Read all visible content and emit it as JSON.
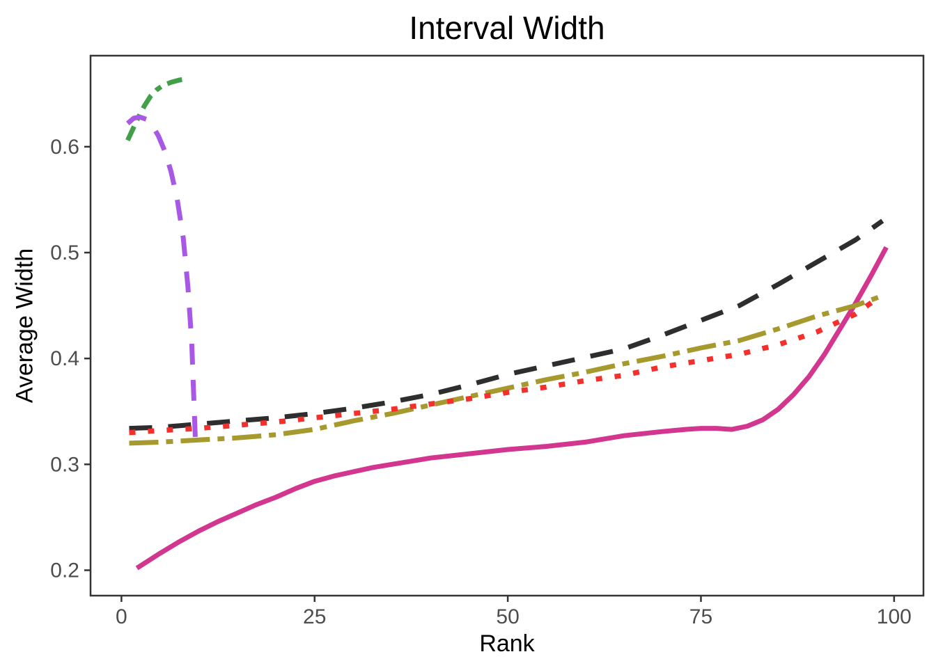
{
  "title": "Interval Width",
  "axes": {
    "x": {
      "label": "Rank",
      "tick_values": [
        0,
        25,
        50,
        75,
        100
      ],
      "tick_labels": [
        "0",
        "25",
        "50",
        "75",
        "100"
      ]
    },
    "y": {
      "label": "Average Width",
      "tick_values": [
        0.2,
        0.3,
        0.4,
        0.5,
        0.6
      ],
      "tick_labels": [
        "0.2",
        "0.3",
        "0.4",
        "0.5",
        "0.6"
      ]
    }
  },
  "style_colors": {
    "background": "#FFFFFF",
    "panel_border": "#333333",
    "tick_mark": "#333333",
    "tick_label": "#4D4D4D",
    "title_text": "#000000"
  },
  "chart_data": {
    "type": "line",
    "title": "Interval Width",
    "xlabel": "Rank",
    "ylabel": "Average Width",
    "xlim": [
      -4.0,
      103.8
    ],
    "ylim": [
      0.176,
      0.686
    ],
    "grid": false,
    "legend": "none",
    "series": [
      {
        "name": "magenta-solid",
        "color": "#D2368E",
        "linestyle": "solid",
        "x": [
          2,
          3.5,
          5,
          7.5,
          10,
          12.5,
          15,
          17.5,
          20,
          22.5,
          25,
          27.5,
          30,
          32.5,
          35,
          37.5,
          40,
          45,
          50,
          55,
          60,
          65,
          70,
          73,
          75,
          77,
          79,
          81,
          83,
          85,
          87,
          89,
          91,
          93,
          95,
          97,
          99
        ],
        "y": [
          0.202,
          0.209,
          0.216,
          0.227,
          0.237,
          0.246,
          0.254,
          0.262,
          0.269,
          0.277,
          0.284,
          0.289,
          0.293,
          0.297,
          0.3,
          0.303,
          0.306,
          0.31,
          0.314,
          0.317,
          0.321,
          0.327,
          0.331,
          0.333,
          0.334,
          0.334,
          0.333,
          0.336,
          0.342,
          0.352,
          0.366,
          0.383,
          0.404,
          0.428,
          0.452,
          0.478,
          0.505
        ]
      },
      {
        "name": "black-longdash",
        "color": "#2E2E2E",
        "linestyle": "dashed",
        "x": [
          1,
          5,
          10,
          15,
          20,
          25,
          30,
          35,
          40,
          45,
          50,
          55,
          60,
          65,
          70,
          75,
          80,
          85,
          90,
          95,
          98.5
        ],
        "y": [
          0.334,
          0.335,
          0.338,
          0.341,
          0.344,
          0.348,
          0.353,
          0.359,
          0.366,
          0.375,
          0.385,
          0.393,
          0.401,
          0.409,
          0.422,
          0.436,
          0.45,
          0.47,
          0.491,
          0.512,
          0.53
        ]
      },
      {
        "name": "olive-dotdash",
        "color": "#A6992E",
        "linestyle": "dotdash",
        "x": [
          1,
          5,
          10,
          15,
          20,
          25,
          30,
          35,
          40,
          45,
          50,
          55,
          60,
          65,
          70,
          75,
          80,
          85,
          90,
          95,
          98.8
        ],
        "y": [
          0.32,
          0.321,
          0.323,
          0.325,
          0.328,
          0.333,
          0.341,
          0.348,
          0.356,
          0.364,
          0.372,
          0.38,
          0.387,
          0.395,
          0.402,
          0.41,
          0.417,
          0.428,
          0.44,
          0.45,
          0.46
        ]
      },
      {
        "name": "red-dotted",
        "color": "#F3302B",
        "linestyle": "dotted",
        "x": [
          1,
          5,
          10,
          15,
          20,
          25,
          30,
          35,
          40,
          45,
          50,
          55,
          60,
          65,
          70,
          75,
          80,
          85,
          90,
          95,
          97.5
        ],
        "y": [
          0.33,
          0.332,
          0.334,
          0.337,
          0.34,
          0.344,
          0.348,
          0.352,
          0.357,
          0.362,
          0.368,
          0.373,
          0.379,
          0.384,
          0.392,
          0.398,
          0.404,
          0.413,
          0.425,
          0.442,
          0.455
        ]
      },
      {
        "name": "green-twodash",
        "color": "#43A04A",
        "linestyle": "twodash",
        "x": [
          0.8,
          1.5,
          2.2,
          3,
          3.8,
          4.6,
          5.4,
          6.5,
          7.5,
          8.6
        ],
        "y": [
          0.606,
          0.617,
          0.628,
          0.639,
          0.648,
          0.654,
          0.658,
          0.661,
          0.663,
          0.664
        ]
      },
      {
        "name": "purple-longdash",
        "color": "#A958E6",
        "linestyle": "longdash",
        "x": [
          0.8,
          1.6,
          2.4,
          3.2,
          4,
          4.8,
          5.6,
          6.4,
          7.2,
          8,
          8.6,
          9.1,
          9.6
        ],
        "y": [
          0.622,
          0.627,
          0.628,
          0.626,
          0.62,
          0.61,
          0.596,
          0.577,
          0.551,
          0.514,
          0.468,
          0.415,
          0.317
        ]
      }
    ]
  }
}
